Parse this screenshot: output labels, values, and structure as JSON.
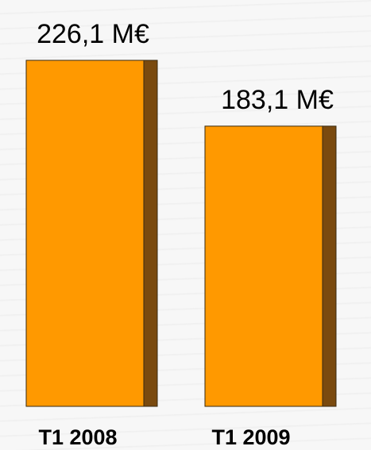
{
  "chart_data": {
    "type": "bar",
    "categories": [
      "T1 2008",
      "T1 2009"
    ],
    "values": [
      226.1,
      183.1
    ],
    "value_labels": [
      "226,1 M€",
      "183,1 M€"
    ],
    "title": "",
    "xlabel": "",
    "ylabel": "",
    "ylim": [
      0,
      226.1
    ],
    "grid": false,
    "legend": "none"
  },
  "colors": {
    "bar_face": "#ff9900",
    "bar_side": "#7a4a0f",
    "bar_outline": "#3a2a10",
    "background": "#f7f7f7"
  }
}
